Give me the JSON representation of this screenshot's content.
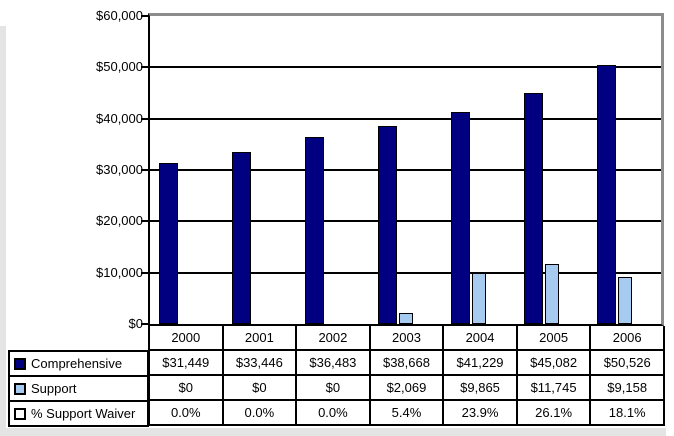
{
  "chart_data": {
    "type": "bar",
    "title": "",
    "xlabel": "",
    "ylabel": "",
    "categories": [
      "2000",
      "2001",
      "2002",
      "2003",
      "2004",
      "2005",
      "2006"
    ],
    "series": [
      {
        "name": "Comprehensive",
        "color": "#000080",
        "plotted": true,
        "values": [
          31449,
          33446,
          36483,
          38668,
          41229,
          45082,
          50526
        ],
        "display": [
          "$31,449",
          "$33,446",
          "$36,483",
          "$38,668",
          "$41,229",
          "$45,082",
          "$50,526"
        ]
      },
      {
        "name": "Support",
        "color": "#A6CAF0",
        "plotted": true,
        "values": [
          0,
          0,
          0,
          2069,
          9865,
          11745,
          9158
        ],
        "display": [
          "$0",
          "$0",
          "$0",
          "$2,069",
          "$9,865",
          "$11,745",
          "$9,158"
        ]
      },
      {
        "name": "% Support Waiver",
        "color": "#FFFFFF",
        "plotted": false,
        "values": [
          0.0,
          0.0,
          0.0,
          5.4,
          23.9,
          26.1,
          18.1
        ],
        "display": [
          "0.0%",
          "0.0%",
          "0.0%",
          "5.4%",
          "23.9%",
          "26.1%",
          "18.1%"
        ]
      }
    ],
    "ylim": [
      0,
      60000
    ],
    "y_ticks": [
      {
        "label": "$0",
        "value": 0
      },
      {
        "label": "$10,000",
        "value": 10000
      },
      {
        "label": "$20,000",
        "value": 20000
      },
      {
        "label": "$30,000",
        "value": 30000
      },
      {
        "label": "$40,000",
        "value": 40000
      },
      {
        "label": "$50,000",
        "value": 50000
      },
      {
        "label": "$60,000",
        "value": 60000
      }
    ],
    "grid": true,
    "gridline_color": "#000000",
    "axis_color": "#000000",
    "plot_outer_border_color": "#8c8c8c",
    "legend_position": "table-left"
  }
}
